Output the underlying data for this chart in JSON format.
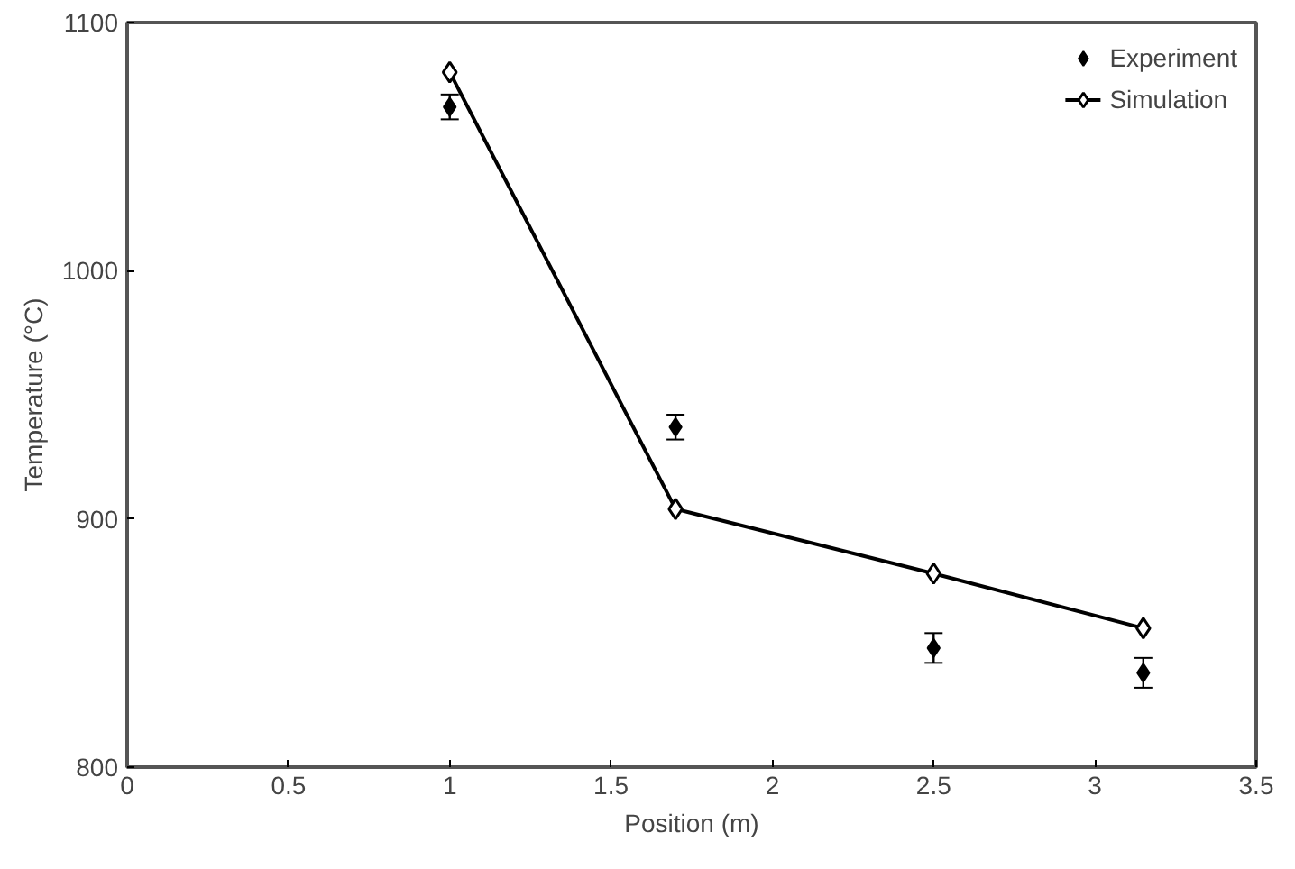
{
  "chart_data": {
    "type": "scatter",
    "xlabel": "Position (m)",
    "ylabel": "Temperature (°C)",
    "xlim": [
      0,
      3.5
    ],
    "xticks": [
      0,
      0.5,
      1,
      1.5,
      2,
      2.5,
      3,
      3.5
    ],
    "ylim": [
      800,
      1100
    ],
    "yticks": [
      800,
      900,
      1000,
      1100
    ],
    "grid": false,
    "legend": "top right",
    "series": [
      {
        "name": "Experiment",
        "marker": "diamond",
        "color": "#000000",
        "x": [
          1,
          1.7,
          2.5,
          3.15
        ],
        "values": [
          1066,
          937,
          848,
          838
        ],
        "errors": [
          5,
          5,
          6,
          6
        ]
      },
      {
        "name": "Simulation",
        "type": "line",
        "marker": "diamond",
        "color": "#000000",
        "x": [
          1,
          1.7,
          2.5,
          3.15
        ],
        "values": [
          1080,
          904,
          878,
          856
        ]
      }
    ]
  }
}
